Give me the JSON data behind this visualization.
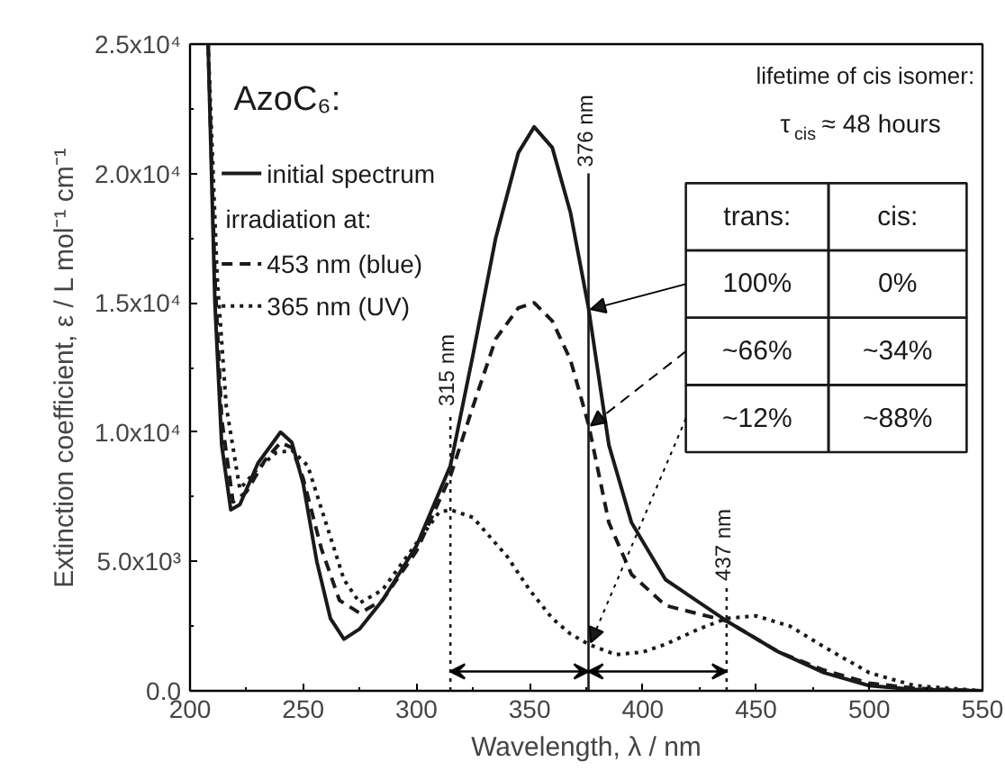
{
  "chart_data": {
    "type": "line",
    "xlabel": "Wavelength, λ / nm",
    "ylabel": "Extinction coefficient, ε / L mol⁻¹ cm⁻¹",
    "legend_title": "AzoC₆:",
    "legend": "top left",
    "grid": false,
    "xlim": [
      200,
      550
    ],
    "ylim": [
      0,
      25000
    ],
    "xticks": [
      200,
      250,
      300,
      350,
      400,
      450,
      500,
      550
    ],
    "yticks": [
      {
        "value": 0,
        "label": "0.0"
      },
      {
        "value": 5000,
        "label": "5.0x10³"
      },
      {
        "value": 10000,
        "label": "1.0x10⁴"
      },
      {
        "value": 15000,
        "label": "1.5x10⁴"
      },
      {
        "value": 20000,
        "label": "2.0x10⁴"
      },
      {
        "value": 25000,
        "label": "2.5x10⁴"
      }
    ],
    "series": [
      {
        "name": "initial spectrum",
        "color": "#1a1a1a",
        "line_style": "solid",
        "x": [
          208,
          211,
          214,
          218,
          222,
          230,
          240,
          245,
          250,
          256,
          262,
          268,
          275,
          285,
          300,
          315,
          325,
          335,
          345,
          352,
          360,
          368,
          376,
          385,
          395,
          410,
          437,
          460,
          480,
          500,
          520,
          550
        ],
        "values": [
          25000,
          15000,
          9500,
          7000,
          7200,
          8800,
          10000,
          9600,
          8000,
          5000,
          2800,
          2000,
          2400,
          3500,
          5600,
          8700,
          13000,
          17500,
          20800,
          21800,
          21000,
          18500,
          14800,
          9500,
          6500,
          4300,
          2700,
          1500,
          700,
          200,
          50,
          0
        ]
      },
      {
        "name": "453 nm (blue)",
        "color": "#1a1a1a",
        "line_style": "dashed",
        "x": [
          208,
          211,
          214,
          219,
          225,
          233,
          240,
          245,
          250,
          258,
          266,
          275,
          285,
          300,
          315,
          325,
          335,
          345,
          352,
          360,
          368,
          376,
          385,
          395,
          410,
          437,
          460,
          480,
          500,
          520,
          550
        ],
        "values": [
          25000,
          16000,
          10500,
          7300,
          7700,
          8900,
          9600,
          9400,
          8200,
          5500,
          3500,
          3000,
          3500,
          5400,
          8300,
          11000,
          13600,
          14800,
          15000,
          14300,
          12800,
          10300,
          6500,
          4500,
          3300,
          2700,
          1500,
          800,
          300,
          100,
          0
        ]
      },
      {
        "name": "365 nm (UV)",
        "color": "#1a1a1a",
        "line_style": "dotted",
        "x": [
          208,
          212,
          216,
          222,
          230,
          238,
          245,
          252,
          260,
          268,
          275,
          285,
          300,
          310,
          315,
          325,
          340,
          350,
          360,
          368,
          376,
          388,
          400,
          410,
          425,
          437,
          450,
          465,
          480,
          500,
          520,
          550
        ],
        "values": [
          25000,
          16000,
          11000,
          7800,
          8600,
          9200,
          9300,
          8700,
          6500,
          4300,
          3400,
          3900,
          5700,
          6900,
          7000,
          6700,
          5200,
          3900,
          2800,
          2200,
          1800,
          1400,
          1500,
          1800,
          2400,
          2800,
          2900,
          2500,
          1700,
          700,
          200,
          0
        ]
      }
    ],
    "ref_lines": [
      {
        "axis": "x",
        "value": 315,
        "label": "315 nm",
        "line_style": "dotted"
      },
      {
        "axis": "x",
        "value": 376,
        "label": "376 nm",
        "line_style": "solid"
      },
      {
        "axis": "x",
        "value": 437,
        "label": "437 nm",
        "line_style": "dotted"
      }
    ],
    "annotations": [
      "irradiation at:",
      "lifetime of cis isomer:",
      "τ$_{cis}$ ≈ 48 hours",
      "trans:",
      "cis:",
      "100%",
      "0%",
      "~66%",
      "~34%",
      "~12%",
      "~88%"
    ]
  }
}
